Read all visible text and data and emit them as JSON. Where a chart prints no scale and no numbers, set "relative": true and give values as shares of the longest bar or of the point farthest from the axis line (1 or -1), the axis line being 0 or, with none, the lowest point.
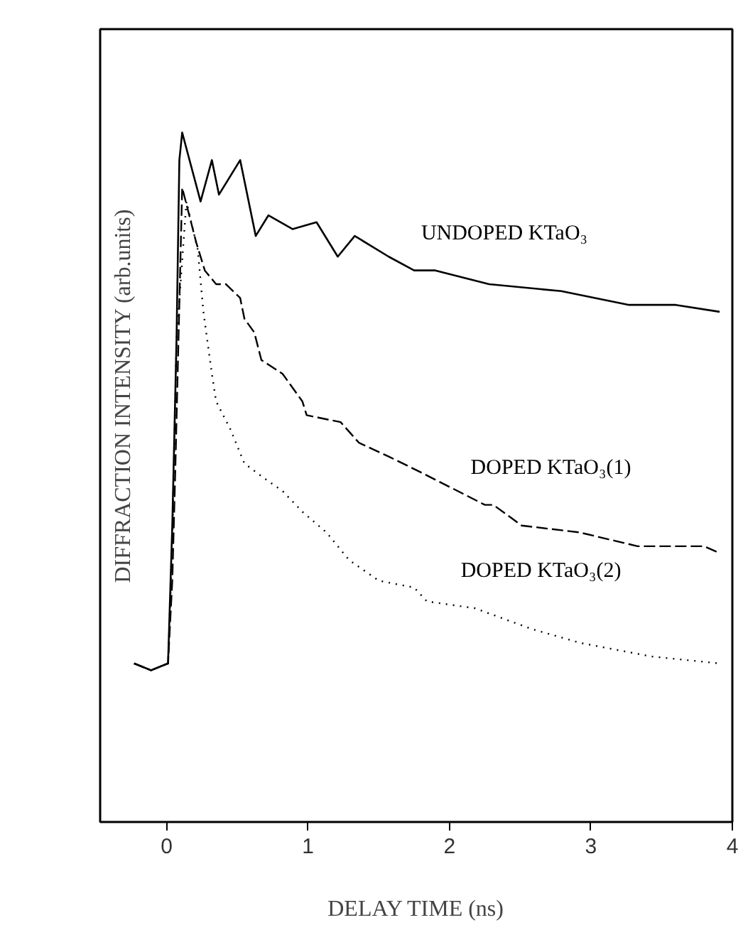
{
  "chart_data": {
    "type": "line",
    "xlabel": "DELAY TIME (ns)",
    "ylabel": "DIFFRACTION INTENSITY (arb.units)",
    "relative": true,
    "xlim": [
      -0.47,
      4.0
    ],
    "xticks": [
      0,
      1,
      2,
      3,
      4
    ],
    "tick_labels": "x",
    "grid": false,
    "legend": false,
    "marker": "none",
    "series": [
      {
        "name": "UNDOPED KTaO₃",
        "color": "#000000",
        "line_style": "solid",
        "x": [
          -0.23,
          -0.11,
          0.01,
          0.04,
          0.07,
          0.09,
          0.11,
          0.24,
          0.32,
          0.37,
          0.52,
          0.63,
          0.72,
          0.89,
          1.06,
          1.21,
          1.33,
          1.57,
          1.75,
          1.9,
          2.28,
          2.79,
          3.27,
          3.6,
          3.91
        ],
        "values": [
          0.23,
          0.22,
          0.23,
          0.43,
          0.7,
          0.96,
          1.0,
          0.9,
          0.96,
          0.91,
          0.96,
          0.85,
          0.88,
          0.86,
          0.87,
          0.82,
          0.85,
          0.82,
          0.8,
          0.8,
          0.78,
          0.77,
          0.75,
          0.75,
          0.74
        ]
      },
      {
        "name": "DOPED KTaO₃(1)",
        "color": "#000000",
        "line_style": "dashed",
        "x": [
          -0.23,
          -0.11,
          0.01,
          0.04,
          0.06,
          0.11,
          0.21,
          0.27,
          0.35,
          0.42,
          0.52,
          0.55,
          0.62,
          0.67,
          0.82,
          0.96,
          0.99,
          1.23,
          1.36,
          1.57,
          1.77,
          2.25,
          2.31,
          2.51,
          2.92,
          3.33,
          3.67,
          3.8,
          3.91
        ],
        "values": [
          0.23,
          0.22,
          0.23,
          0.35,
          0.5,
          0.92,
          0.84,
          0.8,
          0.78,
          0.78,
          0.76,
          0.73,
          0.71,
          0.67,
          0.65,
          0.61,
          0.59,
          0.58,
          0.55,
          0.53,
          0.51,
          0.46,
          0.46,
          0.43,
          0.42,
          0.4,
          0.4,
          0.4,
          0.39
        ]
      },
      {
        "name": "DOPED KTaO₃(2)",
        "color": "#000000",
        "line_style": "dotted",
        "x": [
          -0.23,
          -0.11,
          0.01,
          0.04,
          0.07,
          0.14,
          0.22,
          0.26,
          0.32,
          0.35,
          0.45,
          0.55,
          0.68,
          0.82,
          0.96,
          1.13,
          1.29,
          1.5,
          1.75,
          1.84,
          2.18,
          2.58,
          2.92,
          3.43,
          3.91
        ],
        "values": [
          0.23,
          0.22,
          0.23,
          0.4,
          0.7,
          0.9,
          0.83,
          0.74,
          0.65,
          0.61,
          0.57,
          0.52,
          0.5,
          0.48,
          0.45,
          0.42,
          0.38,
          0.35,
          0.34,
          0.32,
          0.31,
          0.28,
          0.26,
          0.24,
          0.23
        ]
      }
    ]
  }
}
